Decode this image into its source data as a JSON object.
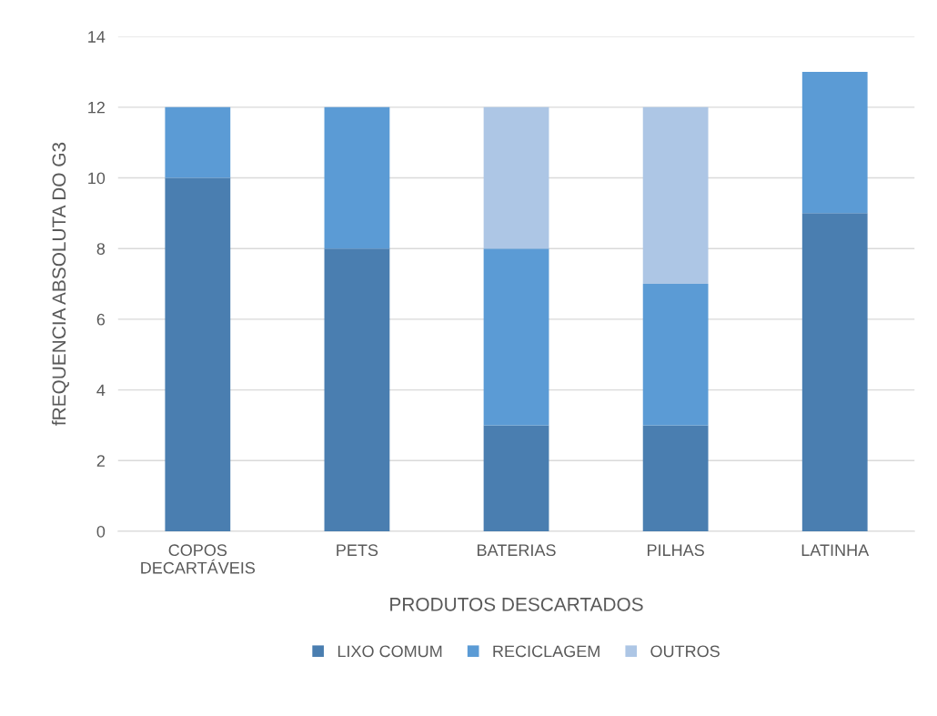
{
  "chart_data": {
    "type": "bar",
    "stacked": true,
    "xlabel": "PRODUTOS DESCARTADOS",
    "ylabel": "fREQUENCIA ABSOLUTA DO G3",
    "categories": [
      "COPOS\nDECARTÁVEIS",
      "PETS",
      "BATERIAS",
      "PILHAS",
      "LATINHA"
    ],
    "series": [
      {
        "name": "LIXO COMUM",
        "color": "#4a7eb0",
        "values": [
          10,
          8,
          3,
          3,
          9
        ]
      },
      {
        "name": "RECICLAGEM",
        "color": "#5b9bd5",
        "values": [
          2,
          4,
          5,
          4,
          4
        ]
      },
      {
        "name": "OUTROS",
        "color": "#adc6e5",
        "values": [
          0,
          0,
          4,
          5,
          0
        ]
      }
    ],
    "ylim": [
      0,
      14
    ],
    "yticks": [
      0,
      2,
      4,
      6,
      8,
      10,
      12,
      14
    ],
    "grid": "y",
    "legend": "bottom"
  }
}
